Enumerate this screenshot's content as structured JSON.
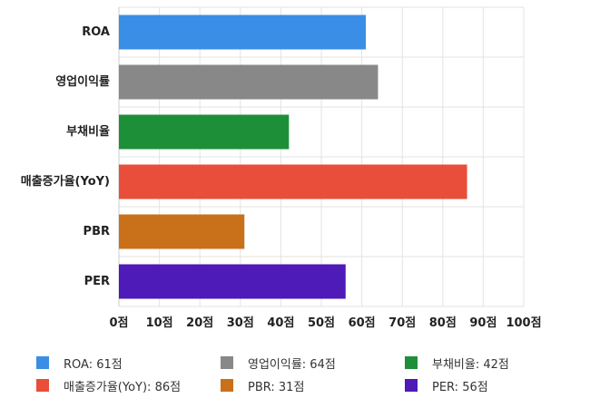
{
  "chart_data": {
    "type": "bar",
    "orientation": "horizontal",
    "categories": [
      "ROA",
      "영업이익률",
      "부채비율",
      "매출증가율(YoY)",
      "PBR",
      "PER"
    ],
    "values": [
      61,
      64,
      42,
      86,
      31,
      56
    ],
    "colors": [
      "#3a8ee6",
      "#888888",
      "#1d8f39",
      "#e84e3a",
      "#c8701a",
      "#4e1ab8"
    ],
    "xlim": [
      0,
      100
    ],
    "xticks": [
      0,
      10,
      20,
      30,
      40,
      50,
      60,
      70,
      80,
      90,
      100
    ],
    "tick_suffix": "점",
    "grid": true,
    "legend_position": "bottom",
    "legend": [
      {
        "label": "ROA: 61점",
        "color": "#3a8ee6"
      },
      {
        "label": "영업이익률: 64점",
        "color": "#888888"
      },
      {
        "label": "부채비율: 42점",
        "color": "#1d8f39"
      },
      {
        "label": "매출증가율(YoY): 86점",
        "color": "#e84e3a"
      },
      {
        "label": "PBR: 31점",
        "color": "#c8701a"
      },
      {
        "label": "PER: 56점",
        "color": "#4e1ab8"
      }
    ]
  }
}
